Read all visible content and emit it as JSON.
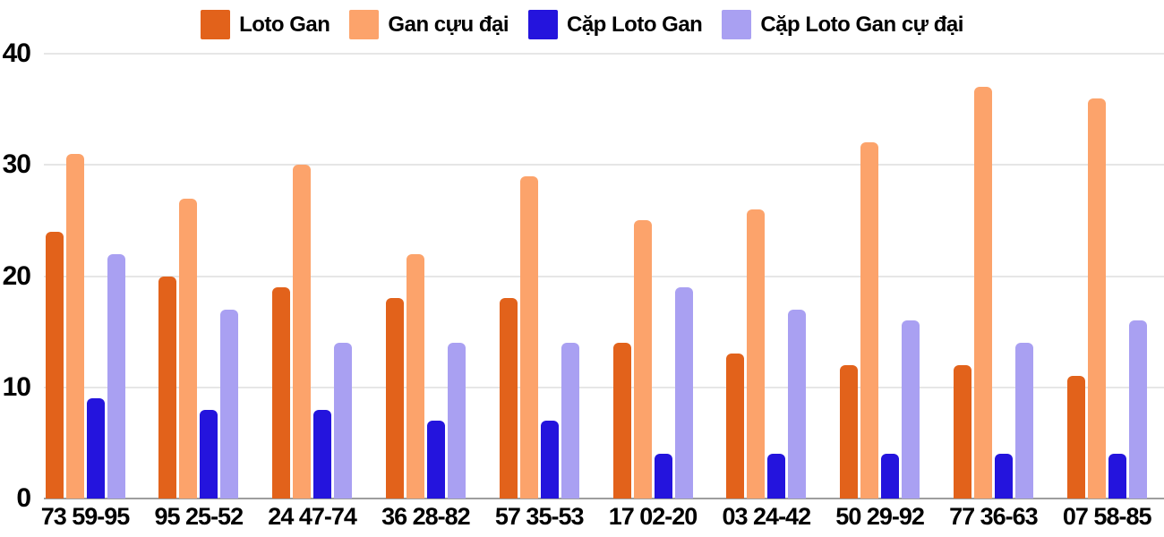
{
  "chart_data": {
    "type": "bar",
    "categories": [
      "73 59-95",
      "95 25-52",
      "24 47-74",
      "36 28-82",
      "57 35-53",
      "17 02-20",
      "03 24-42",
      "50 29-92",
      "77 36-63",
      "07 58-85"
    ],
    "series": [
      {
        "name": "Loto Gan",
        "color": "#e2621b",
        "values": [
          24,
          20,
          19,
          18,
          18,
          14,
          13,
          12,
          12,
          11
        ]
      },
      {
        "name": "Gan cựu đại",
        "color": "#fca36b",
        "values": [
          31,
          27,
          30,
          22,
          29,
          25,
          26,
          32,
          37,
          36
        ]
      },
      {
        "name": "Cặp Loto Gan",
        "color": "#2414dd",
        "values": [
          9,
          8,
          8,
          7,
          7,
          4,
          4,
          4,
          4,
          4
        ]
      },
      {
        "name": "Cặp Loto Gan cự đại",
        "color": "#a9a0f2",
        "values": [
          22,
          17,
          14,
          14,
          14,
          19,
          17,
          16,
          14,
          16
        ]
      }
    ],
    "y_ticks": [
      0,
      10,
      20,
      30,
      40
    ],
    "ylim": [
      0,
      40
    ],
    "grid": true,
    "legend_position": "top",
    "xlabel": "",
    "ylabel": ""
  },
  "colors": {
    "gridline": "#e6e6e6",
    "axis_line": "#9e9e9e",
    "label_text": "#000000",
    "background": "#ffffff"
  }
}
